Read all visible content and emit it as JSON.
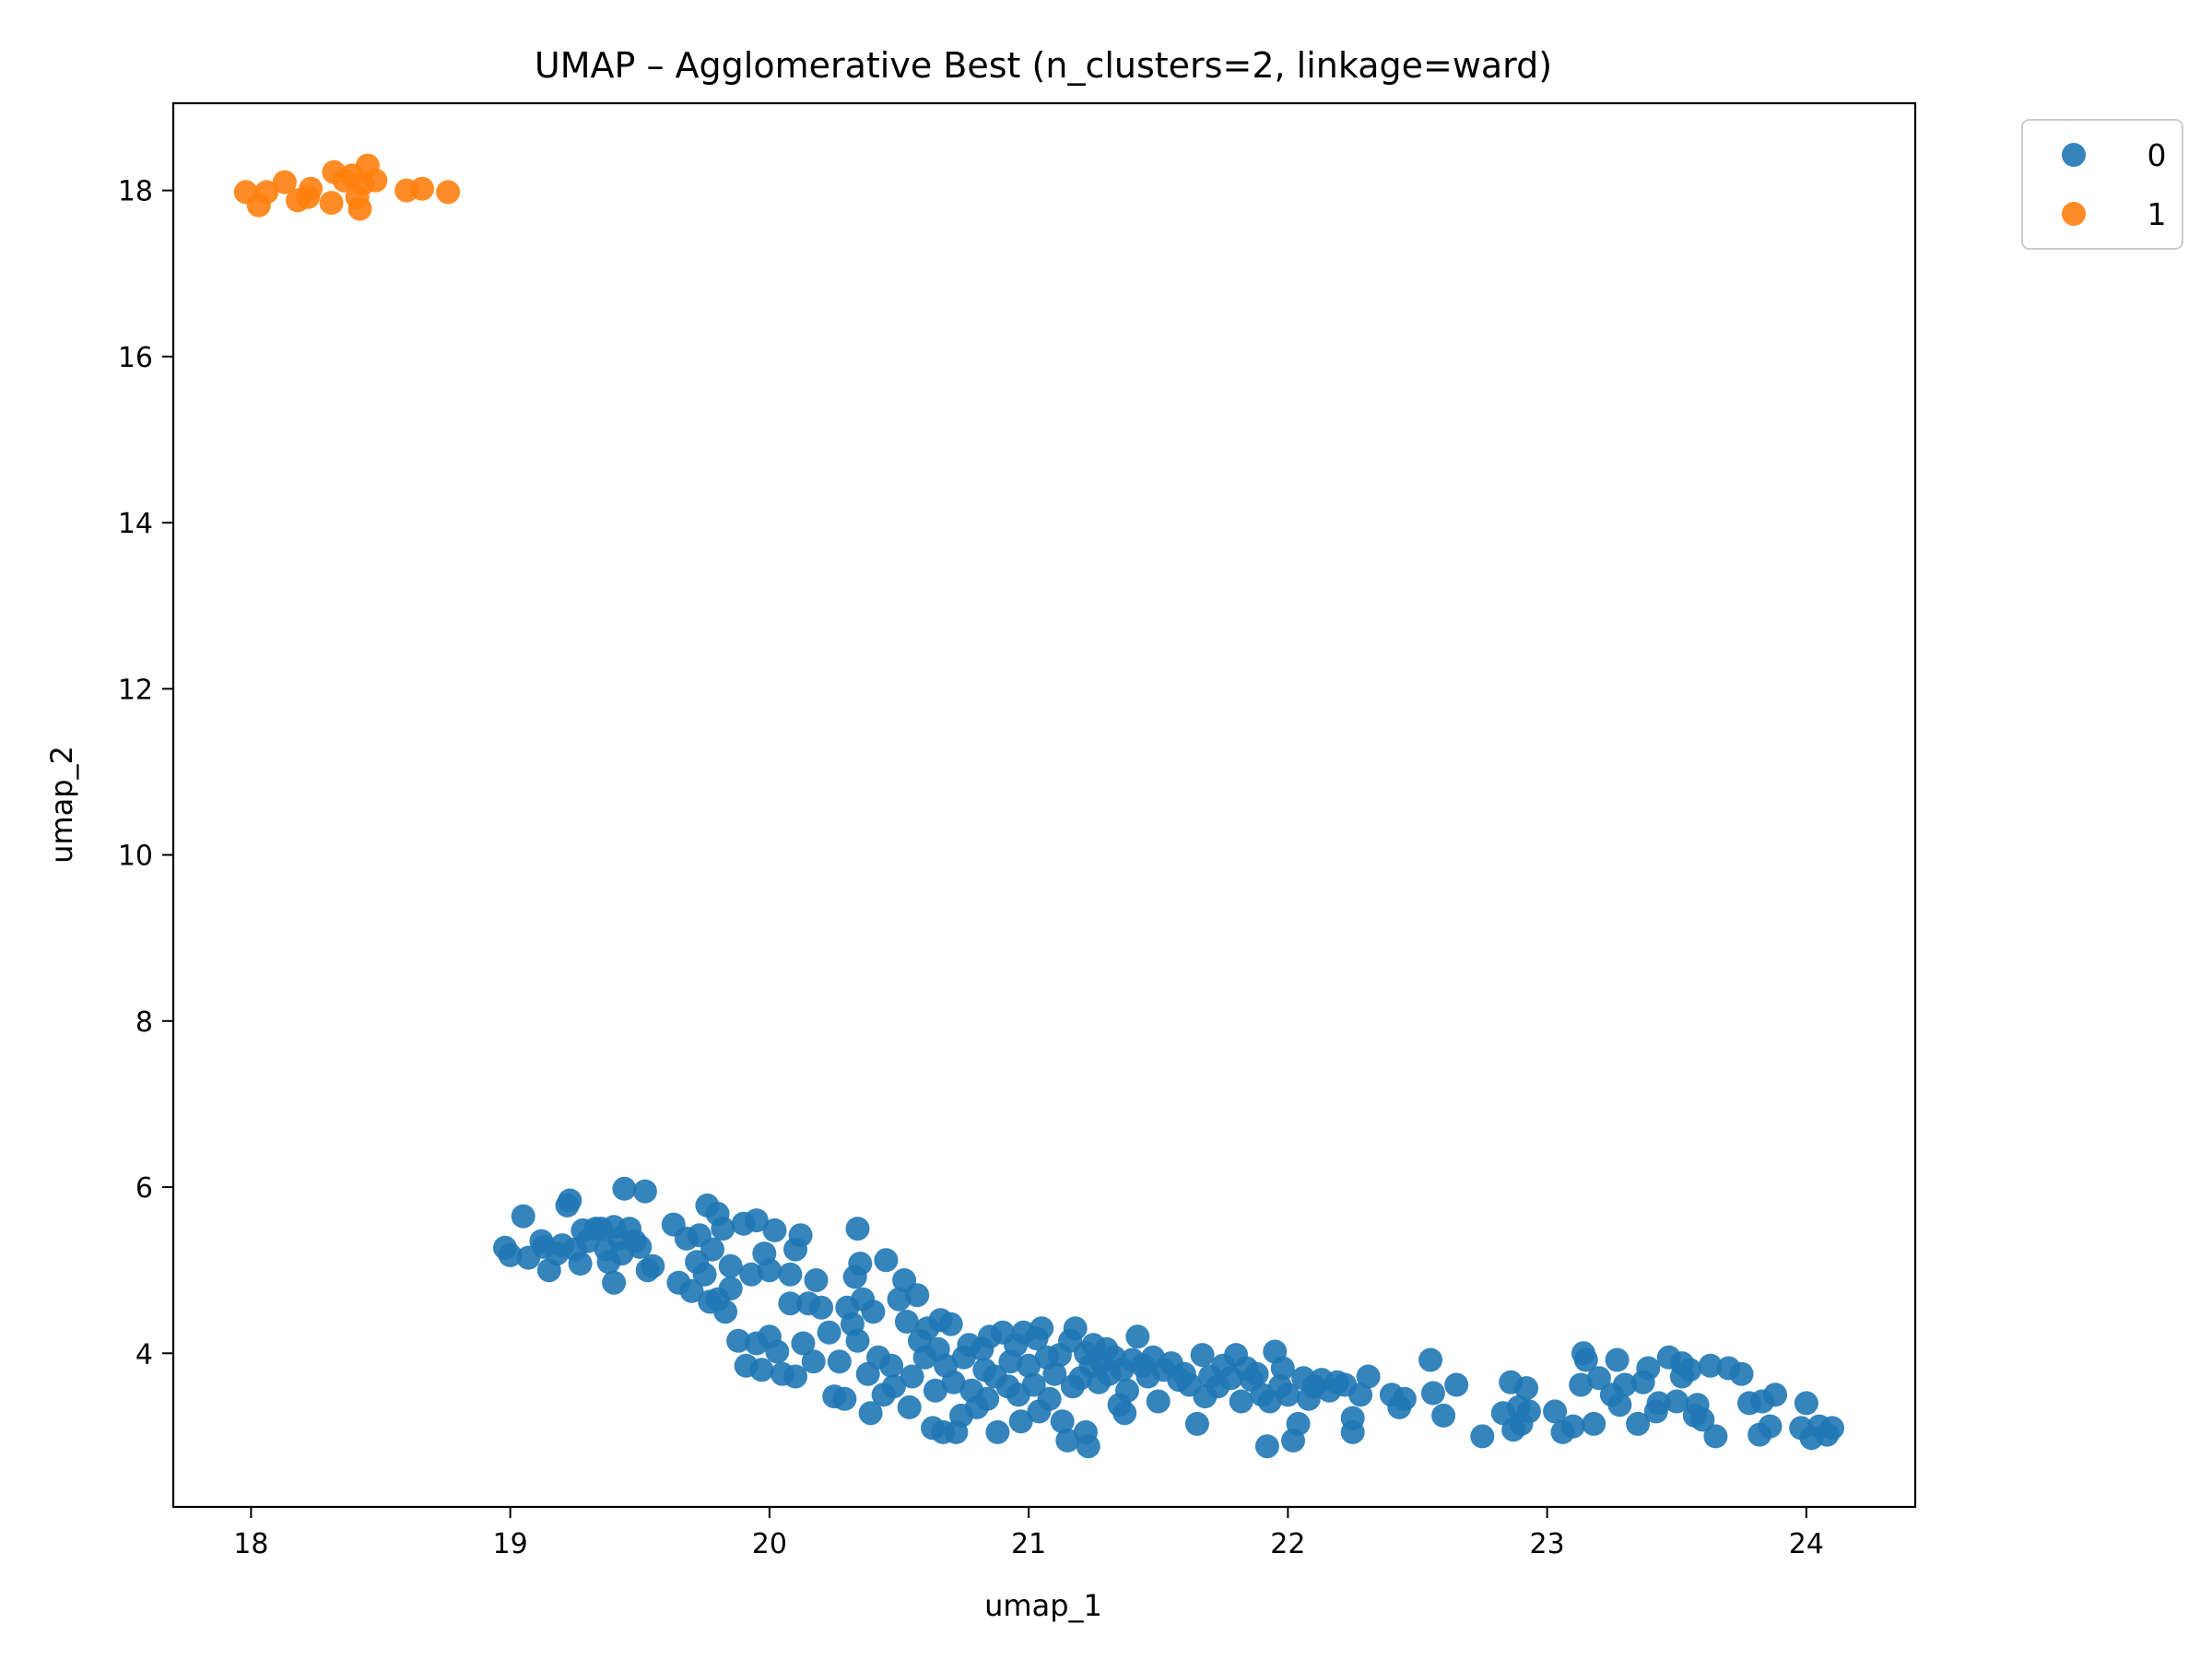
{
  "chart_data": {
    "type": "scatter",
    "title": "UMAP – Agglomerative Best (n_clusters=2, linkage=ward)",
    "xlabel": "umap_1",
    "ylabel": "umap_2",
    "xlim": [
      17.7,
      24.42
    ],
    "ylim": [
      2.15,
      19.05
    ],
    "xticks": [
      18,
      19,
      20,
      21,
      22,
      23,
      24
    ],
    "yticks": [
      4,
      6,
      8,
      10,
      12,
      14,
      16,
      18
    ],
    "grid": false,
    "legend_position": "outside-top-right",
    "series": [
      {
        "name": "0",
        "color": "#1f77b4",
        "points": [
          [
            18.98,
            5.27
          ],
          [
            19.0,
            5.18
          ],
          [
            19.05,
            5.65
          ],
          [
            19.07,
            5.15
          ],
          [
            19.12,
            5.35
          ],
          [
            19.13,
            5.28
          ],
          [
            19.15,
            5.0
          ],
          [
            19.18,
            5.2
          ],
          [
            19.2,
            5.3
          ],
          [
            19.22,
            5.78
          ],
          [
            19.23,
            5.84
          ],
          [
            19.25,
            5.25
          ],
          [
            19.27,
            5.08
          ],
          [
            19.28,
            5.48
          ],
          [
            19.3,
            5.35
          ],
          [
            19.33,
            5.5
          ],
          [
            19.35,
            5.5
          ],
          [
            19.37,
            5.25
          ],
          [
            19.38,
            5.1
          ],
          [
            19.4,
            5.52
          ],
          [
            19.4,
            4.85
          ],
          [
            19.42,
            5.38
          ],
          [
            19.43,
            5.2
          ],
          [
            19.44,
            5.98
          ],
          [
            19.46,
            5.5
          ],
          [
            19.48,
            5.35
          ],
          [
            19.5,
            5.28
          ],
          [
            19.52,
            5.95
          ],
          [
            19.53,
            5.0
          ],
          [
            19.55,
            5.05
          ],
          [
            19.63,
            5.55
          ],
          [
            19.65,
            4.85
          ],
          [
            19.68,
            5.38
          ],
          [
            19.7,
            4.75
          ],
          [
            19.72,
            5.1
          ],
          [
            19.73,
            5.42
          ],
          [
            19.75,
            4.95
          ],
          [
            19.76,
            5.78
          ],
          [
            19.77,
            4.62
          ],
          [
            19.78,
            5.25
          ],
          [
            19.8,
            5.68
          ],
          [
            19.8,
            4.65
          ],
          [
            19.82,
            5.5
          ],
          [
            19.83,
            4.5
          ],
          [
            19.85,
            5.05
          ],
          [
            19.85,
            4.78
          ],
          [
            19.88,
            4.15
          ],
          [
            19.9,
            5.56
          ],
          [
            19.91,
            3.85
          ],
          [
            19.93,
            4.95
          ],
          [
            19.95,
            4.12
          ],
          [
            19.95,
            5.6
          ],
          [
            19.97,
            3.8
          ],
          [
            19.98,
            5.2
          ],
          [
            20.0,
            5.0
          ],
          [
            20.0,
            4.2
          ],
          [
            20.02,
            5.48
          ],
          [
            20.03,
            4.02
          ],
          [
            20.05,
            3.75
          ],
          [
            20.08,
            4.6
          ],
          [
            20.08,
            4.95
          ],
          [
            20.1,
            5.25
          ],
          [
            20.1,
            3.72
          ],
          [
            20.12,
            5.42
          ],
          [
            20.13,
            4.12
          ],
          [
            20.15,
            4.6
          ],
          [
            20.17,
            3.9
          ],
          [
            20.18,
            4.88
          ],
          [
            20.2,
            4.55
          ],
          [
            20.23,
            4.25
          ],
          [
            20.25,
            3.48
          ],
          [
            20.27,
            3.9
          ],
          [
            20.29,
            3.45
          ],
          [
            20.3,
            4.55
          ],
          [
            20.32,
            4.35
          ],
          [
            20.33,
            4.92
          ],
          [
            20.34,
            4.15
          ],
          [
            20.34,
            5.5
          ],
          [
            20.35,
            5.08
          ],
          [
            20.36,
            4.65
          ],
          [
            20.38,
            3.75
          ],
          [
            20.39,
            3.28
          ],
          [
            20.4,
            4.5
          ],
          [
            20.42,
            3.95
          ],
          [
            20.44,
            3.5
          ],
          [
            20.45,
            5.12
          ],
          [
            20.47,
            3.85
          ],
          [
            20.48,
            3.6
          ],
          [
            20.5,
            4.65
          ],
          [
            20.52,
            4.88
          ],
          [
            20.53,
            4.38
          ],
          [
            20.54,
            3.35
          ],
          [
            20.55,
            3.72
          ],
          [
            20.57,
            4.7
          ],
          [
            20.58,
            4.15
          ],
          [
            20.6,
            3.95
          ],
          [
            20.61,
            4.3
          ],
          [
            20.63,
            3.1
          ],
          [
            20.64,
            3.55
          ],
          [
            20.65,
            4.05
          ],
          [
            20.66,
            4.4
          ],
          [
            20.67,
            3.05
          ],
          [
            20.68,
            3.85
          ],
          [
            20.7,
            4.35
          ],
          [
            20.71,
            3.65
          ],
          [
            20.72,
            3.05
          ],
          [
            20.74,
            3.25
          ],
          [
            20.75,
            3.95
          ],
          [
            20.77,
            4.1
          ],
          [
            20.78,
            3.55
          ],
          [
            20.8,
            3.35
          ],
          [
            20.82,
            4.05
          ],
          [
            20.83,
            3.8
          ],
          [
            20.84,
            3.45
          ],
          [
            20.85,
            4.2
          ],
          [
            20.87,
            3.72
          ],
          [
            20.88,
            3.05
          ],
          [
            20.9,
            4.25
          ],
          [
            20.92,
            3.6
          ],
          [
            20.93,
            3.9
          ],
          [
            20.95,
            4.1
          ],
          [
            20.96,
            3.5
          ],
          [
            20.97,
            3.18
          ],
          [
            20.98,
            4.25
          ],
          [
            21.0,
            3.85
          ],
          [
            21.02,
            3.62
          ],
          [
            21.03,
            4.18
          ],
          [
            21.04,
            3.3
          ],
          [
            21.05,
            4.3
          ],
          [
            21.07,
            3.95
          ],
          [
            21.08,
            3.45
          ],
          [
            21.1,
            3.75
          ],
          [
            21.12,
            3.98
          ],
          [
            21.13,
            3.18
          ],
          [
            21.15,
            2.95
          ],
          [
            21.16,
            4.15
          ],
          [
            21.17,
            3.6
          ],
          [
            21.18,
            4.3
          ],
          [
            21.2,
            3.7
          ],
          [
            21.22,
            3.05
          ],
          [
            21.22,
            4.0
          ],
          [
            21.23,
            2.88
          ],
          [
            21.24,
            3.85
          ],
          [
            21.25,
            4.1
          ],
          [
            21.27,
            3.65
          ],
          [
            21.28,
            3.9
          ],
          [
            21.3,
            4.05
          ],
          [
            21.31,
            3.75
          ],
          [
            21.33,
            3.95
          ],
          [
            21.35,
            3.38
          ],
          [
            21.36,
            3.8
          ],
          [
            21.37,
            3.28
          ],
          [
            21.38,
            3.55
          ],
          [
            21.4,
            3.92
          ],
          [
            21.42,
            4.2
          ],
          [
            21.44,
            3.85
          ],
          [
            21.46,
            3.72
          ],
          [
            21.48,
            3.95
          ],
          [
            21.5,
            3.42
          ],
          [
            21.52,
            3.8
          ],
          [
            21.55,
            3.88
          ],
          [
            21.58,
            3.68
          ],
          [
            21.6,
            3.75
          ],
          [
            21.62,
            3.62
          ],
          [
            21.65,
            3.15
          ],
          [
            21.67,
            3.98
          ],
          [
            21.68,
            3.48
          ],
          [
            21.7,
            3.72
          ],
          [
            21.73,
            3.6
          ],
          [
            21.75,
            3.85
          ],
          [
            21.78,
            3.7
          ],
          [
            21.8,
            3.98
          ],
          [
            21.82,
            3.42
          ],
          [
            21.84,
            3.82
          ],
          [
            21.86,
            3.68
          ],
          [
            21.88,
            3.75
          ],
          [
            21.9,
            3.5
          ],
          [
            21.92,
            2.88
          ],
          [
            21.93,
            3.42
          ],
          [
            21.95,
            4.02
          ],
          [
            21.97,
            3.6
          ],
          [
            21.98,
            3.82
          ],
          [
            22.0,
            3.5
          ],
          [
            22.02,
            2.95
          ],
          [
            22.04,
            3.15
          ],
          [
            22.06,
            3.7
          ],
          [
            22.08,
            3.45
          ],
          [
            22.1,
            3.6
          ],
          [
            22.13,
            3.68
          ],
          [
            22.16,
            3.55
          ],
          [
            22.19,
            3.65
          ],
          [
            22.22,
            3.62
          ],
          [
            22.25,
            3.22
          ],
          [
            22.25,
            3.05
          ],
          [
            22.28,
            3.5
          ],
          [
            22.31,
            3.72
          ],
          [
            22.4,
            3.5
          ],
          [
            22.43,
            3.35
          ],
          [
            22.45,
            3.45
          ],
          [
            22.55,
            3.92
          ],
          [
            22.56,
            3.52
          ],
          [
            22.6,
            3.25
          ],
          [
            22.65,
            3.62
          ],
          [
            22.75,
            3.0
          ],
          [
            22.83,
            3.28
          ],
          [
            22.86,
            3.65
          ],
          [
            22.87,
            3.08
          ],
          [
            22.89,
            3.35
          ],
          [
            22.9,
            3.15
          ],
          [
            22.92,
            3.58
          ],
          [
            22.93,
            3.3
          ],
          [
            23.03,
            3.3
          ],
          [
            23.06,
            3.05
          ],
          [
            23.1,
            3.12
          ],
          [
            23.13,
            3.62
          ],
          [
            23.14,
            4.0
          ],
          [
            23.15,
            3.92
          ],
          [
            23.18,
            3.15
          ],
          [
            23.2,
            3.7
          ],
          [
            23.25,
            3.5
          ],
          [
            23.27,
            3.92
          ],
          [
            23.28,
            3.38
          ],
          [
            23.3,
            3.62
          ],
          [
            23.35,
            3.15
          ],
          [
            23.37,
            3.65
          ],
          [
            23.39,
            3.82
          ],
          [
            23.42,
            3.3
          ],
          [
            23.43,
            3.4
          ],
          [
            23.47,
            3.95
          ],
          [
            23.5,
            3.42
          ],
          [
            23.52,
            3.88
          ],
          [
            23.52,
            3.72
          ],
          [
            23.55,
            3.8
          ],
          [
            23.57,
            3.25
          ],
          [
            23.58,
            3.38
          ],
          [
            23.6,
            3.2
          ],
          [
            23.63,
            3.85
          ],
          [
            23.65,
            3.0
          ],
          [
            23.7,
            3.82
          ],
          [
            23.75,
            3.75
          ],
          [
            23.78,
            3.4
          ],
          [
            23.82,
            3.02
          ],
          [
            23.83,
            3.42
          ],
          [
            23.86,
            3.12
          ],
          [
            23.88,
            3.5
          ],
          [
            23.98,
            3.1
          ],
          [
            24.0,
            3.4
          ],
          [
            24.02,
            2.98
          ],
          [
            24.05,
            3.12
          ],
          [
            24.08,
            3.02
          ],
          [
            24.1,
            3.1
          ]
        ]
      },
      {
        "name": "1",
        "color": "#ff7f0e",
        "points": [
          [
            17.98,
            17.98
          ],
          [
            18.03,
            17.82
          ],
          [
            18.06,
            17.98
          ],
          [
            18.13,
            18.1
          ],
          [
            18.18,
            17.88
          ],
          [
            18.22,
            17.92
          ],
          [
            18.23,
            18.02
          ],
          [
            18.31,
            17.85
          ],
          [
            18.32,
            18.22
          ],
          [
            18.36,
            18.12
          ],
          [
            18.39,
            18.18
          ],
          [
            18.41,
            17.92
          ],
          [
            18.42,
            17.78
          ],
          [
            18.43,
            18.08
          ],
          [
            18.45,
            18.3
          ],
          [
            18.48,
            18.12
          ],
          [
            18.6,
            18.0
          ],
          [
            18.66,
            18.02
          ],
          [
            18.76,
            17.98
          ]
        ]
      }
    ],
    "legend": [
      "0",
      "1"
    ]
  }
}
